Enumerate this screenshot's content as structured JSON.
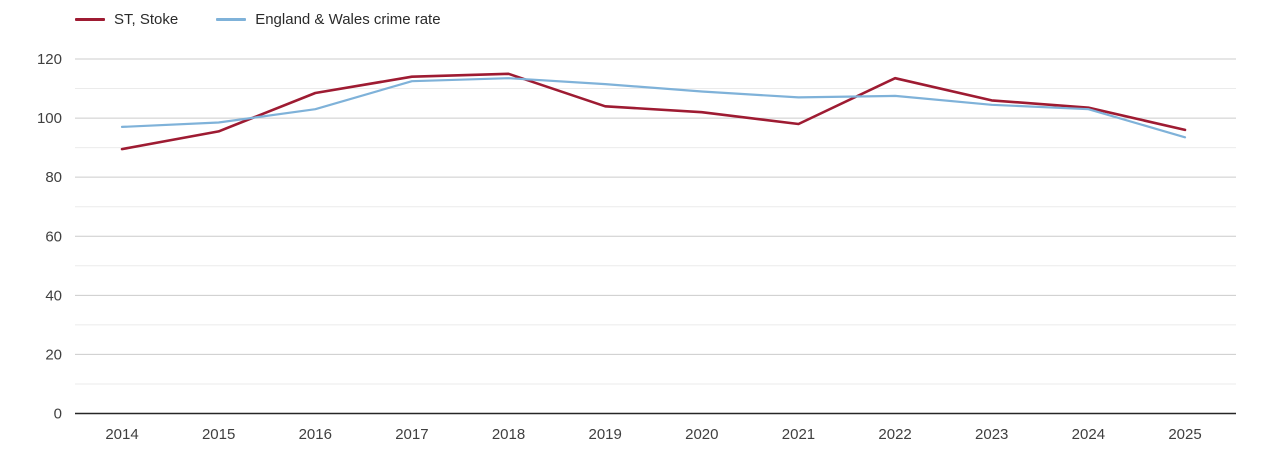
{
  "chart_data": {
    "type": "line",
    "title": "",
    "xlabel": "",
    "ylabel": "",
    "x": [
      2014,
      2015,
      2016,
      2017,
      2018,
      2019,
      2020,
      2021,
      2022,
      2023,
      2024,
      2025
    ],
    "x_tick_labels": [
      "2014",
      "2015",
      "2016",
      "2017",
      "2018",
      "2019",
      "2020",
      "2021",
      "2022",
      "2023",
      "2024",
      "2025"
    ],
    "series": [
      {
        "name": "ST, Stoke",
        "color": "#9e1b32",
        "values": [
          89.5,
          95.5,
          108.5,
          114,
          115,
          104,
          102,
          98,
          113.5,
          106,
          103.5,
          96
        ]
      },
      {
        "name": "England & Wales crime rate",
        "color": "#7fb2d9",
        "values": [
          97,
          98.5,
          103,
          112.5,
          113.5,
          111.5,
          109,
          107,
          107.5,
          104.5,
          103,
          93.5
        ]
      }
    ],
    "ylim": [
      0,
      120
    ],
    "yticks": [
      0,
      20,
      40,
      60,
      80,
      100,
      120
    ],
    "y_tick_labels": [
      "0",
      "20",
      "40",
      "60",
      "80",
      "100",
      "120"
    ],
    "minor_yticks": [
      10,
      30,
      50,
      70,
      90,
      110
    ],
    "grid": true,
    "legend_position": "top-left",
    "colors": {
      "major_gridline": "#cccccc",
      "minor_gridline": "#ebebeb",
      "axis_line": "#262626",
      "tick_text": "#3f3f3f"
    }
  }
}
